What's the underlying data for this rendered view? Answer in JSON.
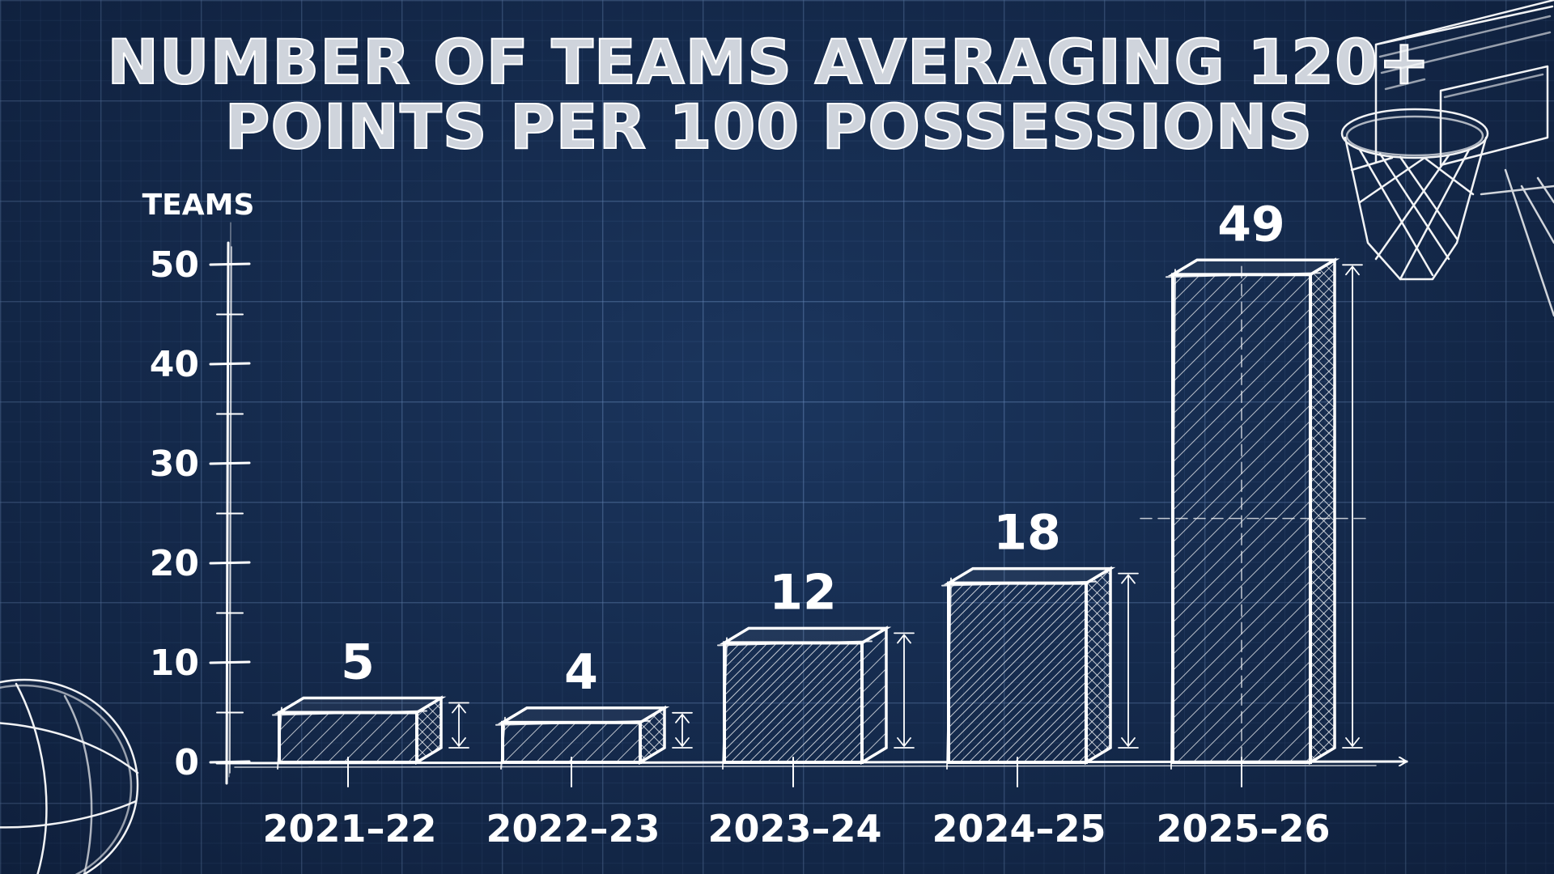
{
  "chart_data": {
    "type": "bar",
    "title": "NUMBER OF TEAMS AVERAGING 120+ POINTS PER 100 POSSESSIONS",
    "title_lines": [
      "NUMBER OF TEAMS AVERAGING 120+",
      "POINTS PER 100 POSSESSIONS"
    ],
    "ylabel": "TEAMS",
    "xlabel": "",
    "categories": [
      "2021–22",
      "2022–23",
      "2023–24",
      "2024–25",
      "2025–26"
    ],
    "values": [
      5,
      4,
      12,
      18,
      49
    ],
    "data_labels": [
      "5",
      "4",
      "12",
      "18",
      "49"
    ],
    "ylim": [
      0,
      50
    ],
    "yticks": [
      0,
      10,
      20,
      30,
      40,
      50
    ],
    "ytick_labels": [
      "0",
      "10",
      "20",
      "30",
      "40",
      "50"
    ],
    "grid": true,
    "legend": "none",
    "colors": {
      "background": "#142a4d",
      "lines": "#ffffff",
      "title_fill": "#cfd4dc"
    },
    "decorations": [
      "basketball-hoop-sketch",
      "basketball-sketch"
    ]
  }
}
